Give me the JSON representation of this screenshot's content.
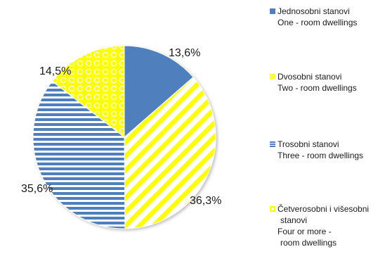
{
  "chart_data": {
    "type": "pie",
    "series": [
      {
        "label_hr": "Jednosobni stanovi",
        "label_en": "One - room dwellings",
        "value": 13.6,
        "value_label": "13,6%",
        "color": "#4f7fbd",
        "pattern": "solid"
      },
      {
        "label_hr": "Dvosobni stanovi",
        "label_en": "Two - room dwellings",
        "value": 36.3,
        "value_label": "36,3%",
        "color": "#ffff00",
        "pattern": "diagonal-stripes"
      },
      {
        "label_hr": "Trosobni stanovi",
        "label_en": "Three - room dwellings",
        "value": 35.6,
        "value_label": "35,6%",
        "color": "#4f7fbd",
        "pattern": "horizontal-stripes"
      },
      {
        "label_hr": "Četverosobni i višesobni stanovi",
        "label_en": "Four or more - room dwellings",
        "value": 14.5,
        "value_label": "14,5%",
        "color": "#ffff00",
        "pattern": "dots"
      }
    ],
    "legend_position": "right"
  },
  "legend": {
    "items": [
      {
        "lines": [
          "Jednosobni stanovi",
          "One - room dwellings"
        ]
      },
      {
        "lines": [
          "Dvosobni stanovi",
          "Two - room dwellings"
        ]
      },
      {
        "lines": [
          "Trosobni stanovi",
          "Three - room dwellings"
        ]
      },
      {
        "lines": [
          "Četverosobni i višesobni",
          "stanovi",
          "Four or more -",
          "room dwellings"
        ]
      }
    ]
  }
}
